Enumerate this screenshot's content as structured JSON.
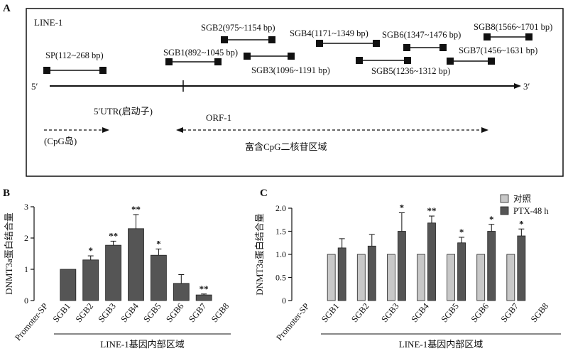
{
  "panel_a": {
    "letter": "A",
    "element_label": "LINE-1",
    "five_prime": "5′",
    "three_prime": "3′",
    "fragments": [
      {
        "id": "sp",
        "label": "SP(112~268 bp)"
      },
      {
        "id": "sgb1",
        "label": "SGB1(892~1045 bp)"
      },
      {
        "id": "sgb2",
        "label": "SGB2(975~1154 bp)"
      },
      {
        "id": "sgb3",
        "label": "SGB3(1096~1191 bp)"
      },
      {
        "id": "sgb4",
        "label": "SGB4(1171~1349 bp)"
      },
      {
        "id": "sgb5",
        "label": "SGB5(1236~1312 bp)"
      },
      {
        "id": "sgb6",
        "label": "SGB6(1347~1476 bp)"
      },
      {
        "id": "sgb7",
        "label": "SGB7(1456~1631 bp)"
      },
      {
        "id": "sgb8",
        "label": "SGB8(1566~1701 bp)"
      }
    ],
    "utr_label": "5′UTR(启动子)",
    "cpg_island_label": "(CpG岛)",
    "orf_label": "ORF-1",
    "cpg_rich_label": "富含CpG二核苷区域"
  },
  "chart_data": [
    {
      "panel": "B",
      "type": "bar",
      "ylabel": "DNMT3a蛋白结合量",
      "xgroup_label": "LINE-1基因内部区域",
      "ylim": [
        0,
        3
      ],
      "yticks": [
        "0",
        "1",
        "2",
        "3"
      ],
      "categories": [
        "Promoter-SP",
        "SGB1",
        "SGB2",
        "SGB3",
        "SGB4",
        "SGB5",
        "SGB6",
        "SGB7",
        "SGB8"
      ],
      "values": [
        0,
        1.0,
        1.3,
        1.77,
        2.3,
        1.45,
        0.55,
        0.18,
        0
      ],
      "errors": [
        0,
        0,
        0.13,
        0.13,
        0.45,
        0.2,
        0.28,
        0.03,
        0
      ],
      "significance": [
        "",
        "",
        "*",
        "**",
        "**",
        "*",
        "",
        "**",
        ""
      ],
      "bar_color": "#555555"
    },
    {
      "panel": "C",
      "type": "bar",
      "ylabel": "DNMT3a蛋白结合量",
      "xgroup_label": "LINE-1基因内部区域",
      "ylim": [
        0,
        2.0
      ],
      "yticks": [
        "0",
        "0.5",
        "1.0",
        "1.5",
        "2.0"
      ],
      "categories": [
        "Promoter-SP",
        "SGB1",
        "SGB2",
        "SGB3",
        "SGB4",
        "SGB5",
        "SGB6",
        "SGB7",
        "SGB8"
      ],
      "series": [
        {
          "name": "对照",
          "color": "#c8c8c8",
          "values": [
            0,
            1.0,
            1.0,
            1.0,
            1.0,
            1.0,
            1.0,
            1.0,
            0
          ],
          "errors": [
            0,
            0,
            0,
            0,
            0,
            0,
            0,
            0,
            0
          ]
        },
        {
          "name": "PTX-48 h",
          "color": "#555555",
          "values": [
            0,
            1.14,
            1.18,
            1.5,
            1.68,
            1.25,
            1.5,
            1.4,
            0
          ],
          "errors": [
            0,
            0.2,
            0.25,
            0.4,
            0.15,
            0.12,
            0.15,
            0.15,
            0
          ]
        }
      ],
      "significance": [
        "",
        "",
        "",
        "*",
        "**",
        "*",
        "*",
        "*",
        ""
      ]
    }
  ]
}
